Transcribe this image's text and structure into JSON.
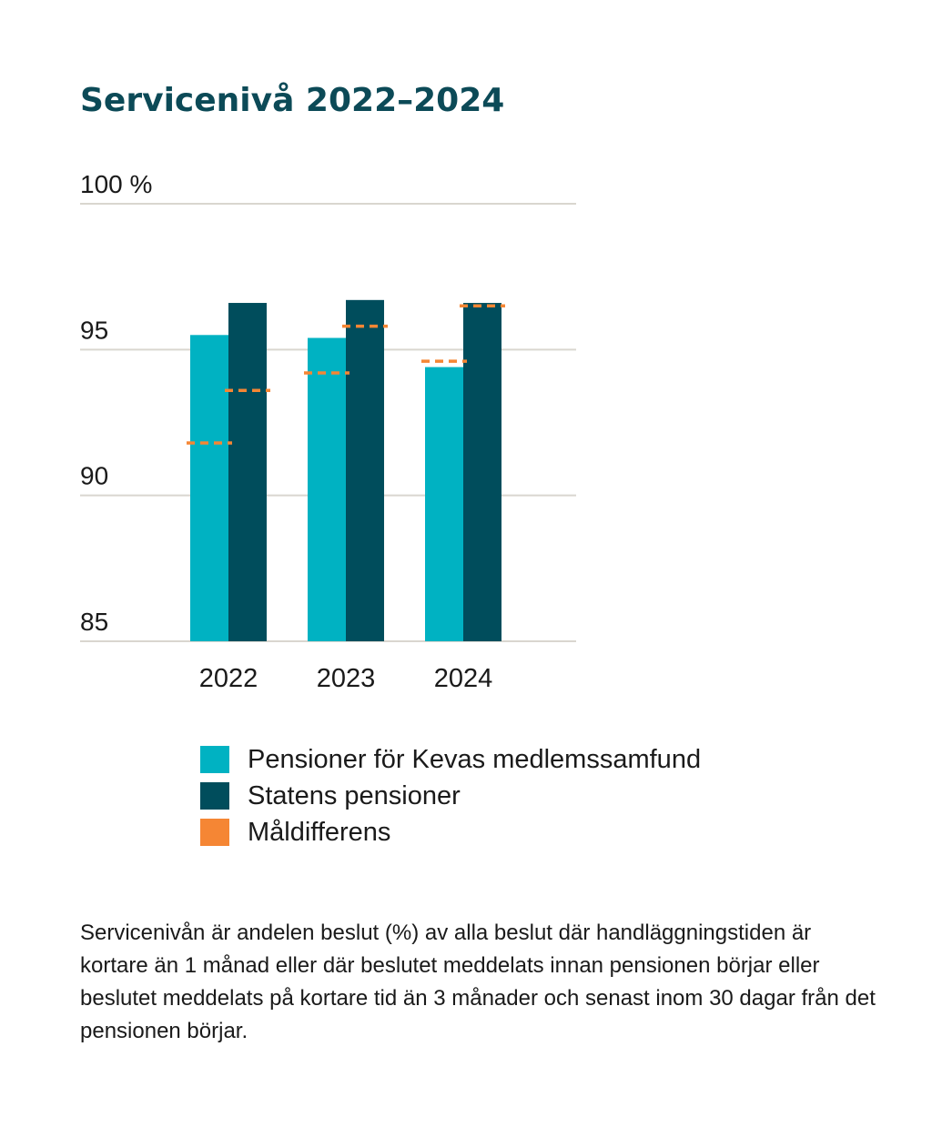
{
  "title": "Servicenivå 2022–2024",
  "chart_data": {
    "type": "bar",
    "categories": [
      "2022",
      "2023",
      "2024"
    ],
    "ylim": [
      85,
      100
    ],
    "yticks": [
      85,
      90,
      95,
      100
    ],
    "ytick_labels": [
      "85",
      "90",
      "95",
      "100 %"
    ],
    "grid": true,
    "legend_position": "bottom",
    "series": [
      {
        "name": "Pensioner för Kevas medlemssamfund",
        "color": "#00b2c2",
        "values": [
          95.5,
          95.4,
          94.4
        ]
      },
      {
        "name": "Statens pensioner",
        "color": "#004d5c",
        "values": [
          96.6,
          96.7,
          96.6
        ]
      }
    ],
    "targets": {
      "name": "Måldifferens",
      "color": "#f58634",
      "style": "dashed",
      "values": [
        {
          "category": "2022",
          "series": "Pensioner för Kevas medlemssamfund",
          "value": 91.8
        },
        {
          "category": "2022",
          "series": "Statens pensioner",
          "value": 93.6
        },
        {
          "category": "2023",
          "series": "Pensioner för Kevas medlemssamfund",
          "value": 94.2
        },
        {
          "category": "2023",
          "series": "Statens pensioner",
          "value": 95.8
        },
        {
          "category": "2024",
          "series": "Pensioner för Kevas medlemssamfund",
          "value": 94.6
        },
        {
          "category": "2024",
          "series": "Statens pensioner",
          "value": 96.5
        }
      ]
    }
  },
  "legend": [
    {
      "label": "Pensioner för Kevas medlemssamfund",
      "color": "#00b2c2"
    },
    {
      "label": "Statens pensioner",
      "color": "#004d5c"
    },
    {
      "label": "Måldifferens",
      "color": "#f58634"
    }
  ],
  "note": "Servicenivån är andelen beslut (%) av alla beslut där handläggningstiden är kortare än 1 månad eller där beslutet meddelats innan pensionen börjar eller beslutet meddelats på kortare tid än 3 månader och senast inom 30 dagar från det pensionen börjar."
}
